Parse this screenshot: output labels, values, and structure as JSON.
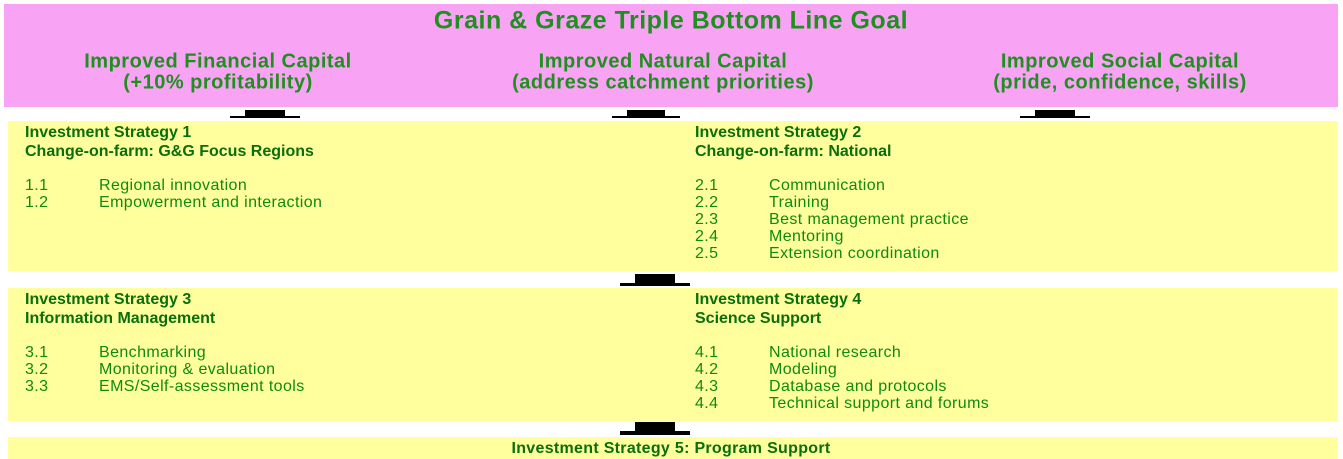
{
  "title": "Grain & Graze Triple Bottom Line Goal",
  "capitals": [
    {
      "name": "Improved Financial Capital",
      "detail": "(+10% profitability)"
    },
    {
      "name": "Improved Natural Capital",
      "detail": "(address catchment priorities)"
    },
    {
      "name": "Improved Social Capital",
      "detail": "(pride, confidence, skills)"
    }
  ],
  "strategies": [
    {
      "title": "Investment Strategy 1",
      "subtitle": "Change-on-farm: G&G Focus Regions",
      "items": [
        {
          "number": "1.1",
          "label": "Regional innovation"
        },
        {
          "number": "1.2",
          "label": "Empowerment and interaction"
        }
      ]
    },
    {
      "title": "Investment Strategy 2",
      "subtitle": "Change-on-farm: National",
      "items": [
        {
          "number": "2.1",
          "label": "Communication"
        },
        {
          "number": "2.2",
          "label": "Training"
        },
        {
          "number": "2.3",
          "label": "Best management practice"
        },
        {
          "number": "2.4",
          "label": "Mentoring"
        },
        {
          "number": "2.5",
          "label": "Extension coordination"
        }
      ]
    },
    {
      "title": "Investment Strategy 3",
      "subtitle": "Information Management",
      "items": [
        {
          "number": "3.1",
          "label": "Benchmarking"
        },
        {
          "number": "3.2",
          "label": "Monitoring & evaluation"
        },
        {
          "number": "3.3",
          "label": "EMS/Self-assessment tools"
        }
      ]
    },
    {
      "title": "Investment Strategy 4",
      "subtitle": "Science Support",
      "items": [
        {
          "number": "4.1",
          "label": "National research"
        },
        {
          "number": "4.2",
          "label": "Modeling"
        },
        {
          "number": "4.3",
          "label": "Database and protocols"
        },
        {
          "number": "4.4",
          "label": "Technical support and forums"
        }
      ]
    }
  ],
  "program_support": "Investment Strategy 5: Program Support"
}
